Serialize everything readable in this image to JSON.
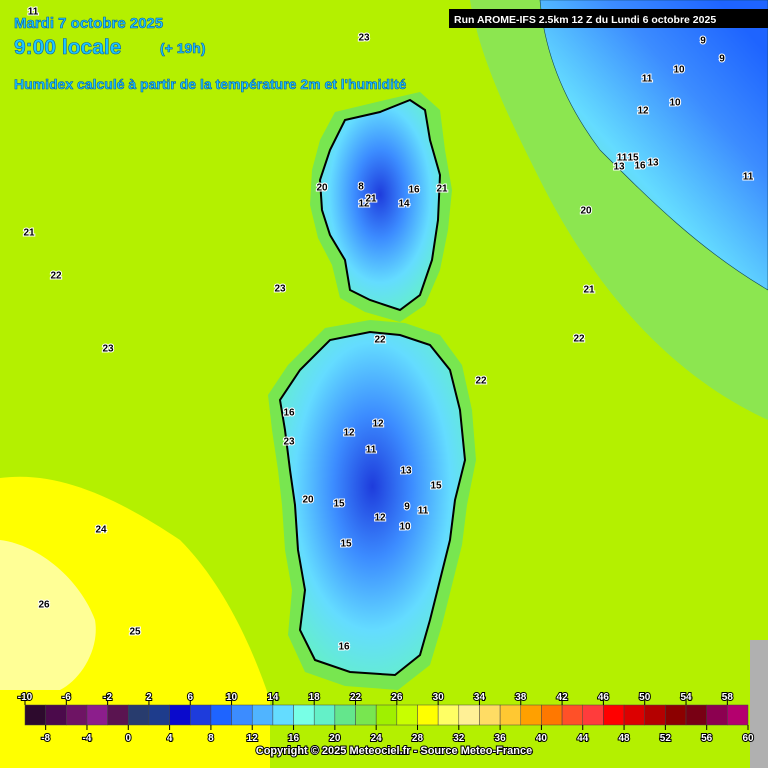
{
  "header": {
    "date": "Mardi 7 octobre 2025",
    "time": "9:00 locale",
    "lead": "(+ 19h)",
    "subtitle": "Humidex calculé à partir de la température 2m et l'humidité",
    "run": "Run AROME-IFS 2.5km 12 Z du Lundi 6 octobre 2025",
    "copyright": "Copyright © 2025 Meteociel.fr - Source Meteo-France"
  },
  "map": {
    "contour_labels": [
      11,
      23,
      9,
      9,
      11,
      10,
      12,
      10,
      11,
      20,
      21,
      22,
      21,
      22,
      23,
      23,
      22,
      22,
      16,
      23,
      12,
      12,
      11,
      13,
      15,
      20,
      15,
      9,
      11,
      12,
      10,
      15,
      24,
      26,
      25,
      16,
      20,
      8,
      12,
      21,
      14,
      16,
      21,
      13,
      16,
      15,
      13,
      11
    ]
  },
  "legend": {
    "top_labels": [
      -10,
      -6,
      -2,
      2,
      6,
      10,
      14,
      18,
      22,
      26,
      30,
      34,
      38,
      42,
      46,
      50,
      54,
      58
    ],
    "bottom_labels": [
      -8,
      -4,
      0,
      4,
      8,
      12,
      16,
      20,
      24,
      28,
      32,
      36,
      40,
      44,
      48,
      52,
      56,
      60
    ],
    "colors": [
      "#2d0a2d",
      "#4b0a4b",
      "#6e1464",
      "#8c1e8c",
      "#5a1450",
      "#283c6e",
      "#1e3c8c",
      "#0a0acc",
      "#1e3cdc",
      "#1e64ff",
      "#3c8cff",
      "#50b4ff",
      "#64dcff",
      "#78ffe6",
      "#64f0c8",
      "#64e68c",
      "#78e650",
      "#a0f000",
      "#c8ff00",
      "#ffff00",
      "#ffff64",
      "#fff096",
      "#ffdc64",
      "#ffc832",
      "#ffa000",
      "#ff7800",
      "#ff5028",
      "#ff3c3c",
      "#ff0000",
      "#dc0000",
      "#b40000",
      "#8c0000",
      "#780014",
      "#8c0050",
      "#b4006e"
    ]
  }
}
